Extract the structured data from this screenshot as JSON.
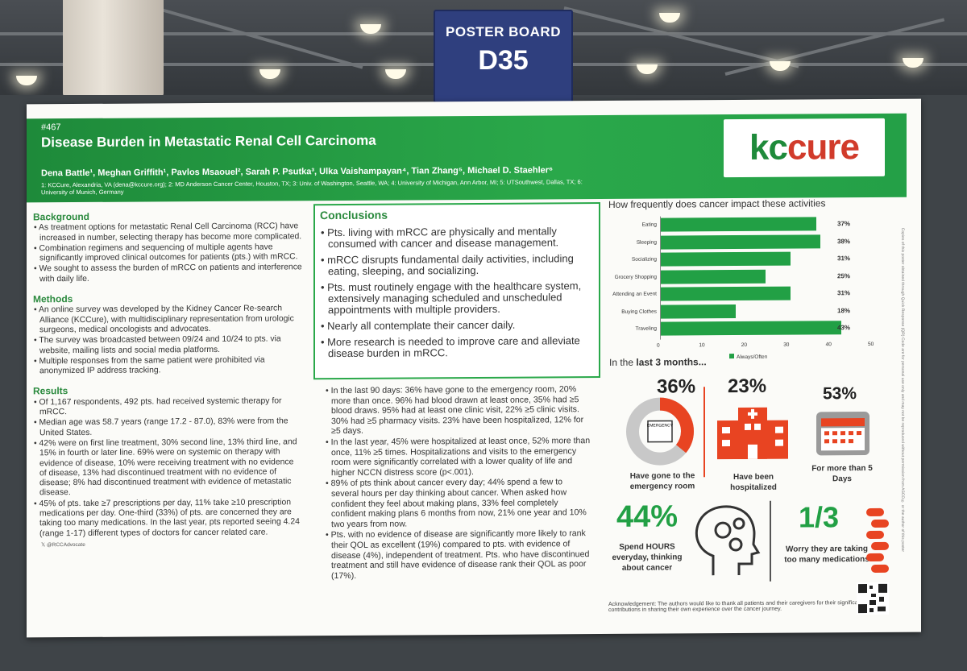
{
  "booth": {
    "label": "POSTER BOARD",
    "code": "D35"
  },
  "poster": {
    "number": "#467",
    "title": "Disease Burden in Metastatic Renal Cell Carcinoma",
    "authors": "Dena Battle¹, Meghan Griffith¹, Pavlos Msaouel², Sarah P. Psutka³, Ulka Vaishampayan⁴, Tian Zhang⁵, Michael D. Staehler⁶",
    "affiliations": "1: KCCure, Alexandria, VA (dena@kccure.org); 2: MD Anderson Cancer Center, Houston, TX; 3: Univ. of Washington, Seattle, WA; 4: University of Michigan, Ann Arbor, MI; 5: UTSouthwest, Dallas, TX; 6: University of Munich, Germany",
    "logo_a": "kc",
    "logo_b": "cure"
  },
  "background": {
    "heading": "Background",
    "items": [
      "As treatment options for metastatic Renal Cell Carcinoma (RCC) have increased in number, selecting therapy has become more complicated.",
      "Combination regimens and sequencing of multiple agents have significantly improved clinical outcomes for patients (pts.) with mRCC.",
      "We sought to assess the burden of mRCC on patients and interference with daily life."
    ]
  },
  "methods": {
    "heading": "Methods",
    "items": [
      "An online survey was developed by the Kidney Cancer Re-search Alliance (KCCure), with multidisciplinary representation from urologic surgeons, medical oncologists and advocates.",
      "The survey was broadcasted between 09/24 and 10/24 to pts. via website, mailing lists and social media platforms.",
      "Multiple responses from the same patient were prohibited via anonymized IP address tracking."
    ]
  },
  "results": {
    "heading": "Results",
    "items": [
      "Of 1,167 respondents, 492 pts. had received systemic therapy for mRCC.",
      "Median age was 58.7 years (range 17.2 - 87.0), 83% were from the United States.",
      "42% were on first line treatment, 30% second line, 13% third line, and 15% in fourth or later line. 69% were on systemic on therapy with evidence of disease, 10% were receiving treatment with no evidence of disease, 13% had discontinued treatment with no evidence of disease; 8% had discontinued treatment with evidence of metastatic disease.",
      "45% of pts. take ≥7 prescriptions per day, 11% take ≥10 prescription medications per day. One-third (33%) of pts. are concerned they are taking too many medications. In the last year, pts reported seeing 4.24 (range 1-17) different types of doctors for cancer related care."
    ],
    "handle": "@RCCAdvocate"
  },
  "conclusions": {
    "heading": "Conclusions",
    "items": [
      "Pts. living with mRCC are physically and mentally consumed with cancer and disease management.",
      "mRCC disrupts fundamental daily activities, including eating, sleeping, and socializing.",
      "Pts. must routinely engage with the healthcare system, extensively managing scheduled and unscheduled appointments with multiple providers.",
      "Nearly all contemplate their cancer daily.",
      "More research is needed to improve care and alleviate disease burden in mRCC."
    ]
  },
  "findings": [
    "In the last 90 days: 36% have gone to the emergency room, 20% more than once. 96% had blood drawn at least once, 35% had ≥5 blood draws. 95% had at least one clinic visit, 22% ≥5 clinic visits. 30% had ≥5 pharmacy visits. 23% have been hospitalized, 12% for ≥5 days.",
    "In the last year, 45% were hospitalized at least once, 52% more than once, 11% ≥5 times. Hospitalizations and visits to the emergency room were significantly correlated with a lower quality of life and higher NCCN distress score (p<.001).",
    "89% of pts think about cancer every day; 44% spend a few to several hours per day thinking about cancer. When asked how confident they feel about making plans, 33% feel completely confident making plans 6 months from now, 21% one year and 10% two years from now.",
    "Pts. with no evidence of disease are significantly more likely to rank their QOL as excellent (19%) compared to pts. with evidence of disease (4%), independent of treatment. Pts. who have discontinued treatment and still have evidence of disease rank their QOL as poor (17%)."
  ],
  "chart_data": {
    "type": "bar",
    "orientation": "horizontal",
    "title": "How frequently does cancer impact these activities",
    "categories": [
      "Eating",
      "Sleeping",
      "Socializing",
      "Grocery Shopping",
      "Attending an Event",
      "Buying Clothes",
      "Traveling"
    ],
    "series": [
      {
        "name": "Always/Often",
        "values": [
          37,
          38,
          31,
          25,
          31,
          18,
          43
        ]
      }
    ],
    "value_labels": [
      "37%",
      "38%",
      "31%",
      "25%",
      "31%",
      "18%",
      "43%"
    ],
    "xlim": [
      0,
      50
    ],
    "xticks": [
      0,
      10,
      20,
      30,
      40,
      50
    ],
    "legend": "bottom-left",
    "color": "#22a045"
  },
  "stats": {
    "heading_prefix": "In the ",
    "heading_bold": "last 3 months...",
    "er": {
      "value": "36%",
      "fraction": 0.36,
      "caption": "Have gone to the emergency room",
      "sign": "EMERGENCY"
    },
    "hosp": {
      "value": "23%",
      "caption": "Have been hospitalized"
    },
    "days": {
      "value": "53%",
      "caption": "For more than 5 Days"
    },
    "hours": {
      "value": "44%",
      "caption": "Spend HOURS everyday, thinking about cancer"
    },
    "meds": {
      "value": "1/3",
      "caption": "Worry they are taking too many medications"
    }
  },
  "acknowledgement": "Acknowledgement: The authors would like to thank all patients and their caregivers for their significant contributions in sharing their own experience over the cancer journey.",
  "side_note": "Copies of this poster obtained through Quick Response (QR) Code are for personal use only and may not be reproduced without permission from ASCO® or the author of this poster",
  "colors": {
    "green": "#2aa84a",
    "red": "#d13b2b",
    "board": "#2f3f7e"
  }
}
